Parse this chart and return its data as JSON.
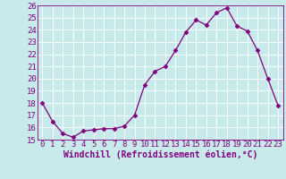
{
  "x": [
    0,
    1,
    2,
    3,
    4,
    5,
    6,
    7,
    8,
    9,
    10,
    11,
    12,
    13,
    14,
    15,
    16,
    17,
    18,
    19,
    20,
    21,
    22,
    23
  ],
  "y": [
    18,
    16.5,
    15.5,
    15.2,
    15.7,
    15.8,
    15.9,
    15.9,
    16.1,
    17.0,
    19.5,
    20.6,
    21.0,
    22.3,
    23.8,
    24.8,
    24.4,
    25.4,
    25.8,
    24.3,
    23.9,
    22.3,
    20.0,
    17.8
  ],
  "line_color": "#800080",
  "marker": "D",
  "marker_size": 2.5,
  "xlabel": "Windchill (Refroidissement éolien,°C)",
  "xlim": [
    -0.5,
    23.5
  ],
  "ylim": [
    15,
    26
  ],
  "yticks": [
    15,
    16,
    17,
    18,
    19,
    20,
    21,
    22,
    23,
    24,
    25,
    26
  ],
  "xticks": [
    0,
    1,
    2,
    3,
    4,
    5,
    6,
    7,
    8,
    9,
    10,
    11,
    12,
    13,
    14,
    15,
    16,
    17,
    18,
    19,
    20,
    21,
    22,
    23
  ],
  "bg_color": "#c8eaea",
  "grid_color": "#ffffff",
  "tick_color": "#800080",
  "label_color": "#800080",
  "font_size": 6.5,
  "xlabel_font_size": 7.0
}
